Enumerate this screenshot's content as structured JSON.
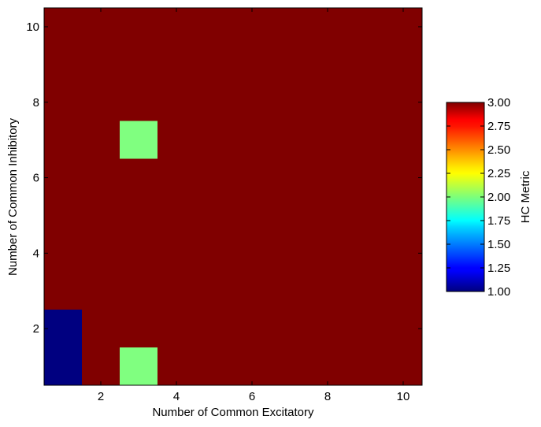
{
  "chart_data": {
    "type": "heatmap",
    "title": "",
    "xlabel": "Number of Common Excitatory",
    "ylabel": "Number of Common Inhibitory",
    "x_categories": [
      1,
      2,
      3,
      4,
      5,
      6,
      7,
      8,
      9,
      10
    ],
    "y_categories": [
      1,
      2,
      3,
      4,
      5,
      6,
      7,
      8,
      9,
      10
    ],
    "xlim": [
      0.5,
      10.5
    ],
    "ylim": [
      0.5,
      10.5
    ],
    "x_ticks": [
      "2",
      "4",
      "6",
      "8",
      "10"
    ],
    "y_ticks": [
      "2",
      "4",
      "6",
      "8",
      "10"
    ],
    "grid": false,
    "values_description": "rows indexed by y from 1 to 10, columns by x from 1 to 10",
    "values": [
      [
        1,
        3,
        2,
        3,
        3,
        3,
        3,
        3,
        3,
        3
      ],
      [
        1,
        3,
        3,
        3,
        3,
        3,
        3,
        3,
        3,
        3
      ],
      [
        3,
        3,
        3,
        3,
        3,
        3,
        3,
        3,
        3,
        3
      ],
      [
        3,
        3,
        3,
        3,
        3,
        3,
        3,
        3,
        3,
        3
      ],
      [
        3,
        3,
        3,
        3,
        3,
        3,
        3,
        3,
        3,
        3
      ],
      [
        3,
        3,
        3,
        3,
        3,
        3,
        3,
        3,
        3,
        3
      ],
      [
        3,
        3,
        2,
        3,
        3,
        3,
        3,
        3,
        3,
        3
      ],
      [
        3,
        3,
        3,
        3,
        3,
        3,
        3,
        3,
        3,
        3
      ],
      [
        3,
        3,
        3,
        3,
        3,
        3,
        3,
        3,
        3,
        3
      ],
      [
        3,
        3,
        3,
        3,
        3,
        3,
        3,
        3,
        3,
        3
      ]
    ],
    "colorbar": {
      "label": "HC Metric",
      "colormap": "jet",
      "vmin": 1.0,
      "vmax": 3.0,
      "ticks": [
        "1.00",
        "1.25",
        "1.50",
        "1.75",
        "2.00",
        "2.25",
        "2.50",
        "2.75",
        "3.00"
      ]
    }
  }
}
